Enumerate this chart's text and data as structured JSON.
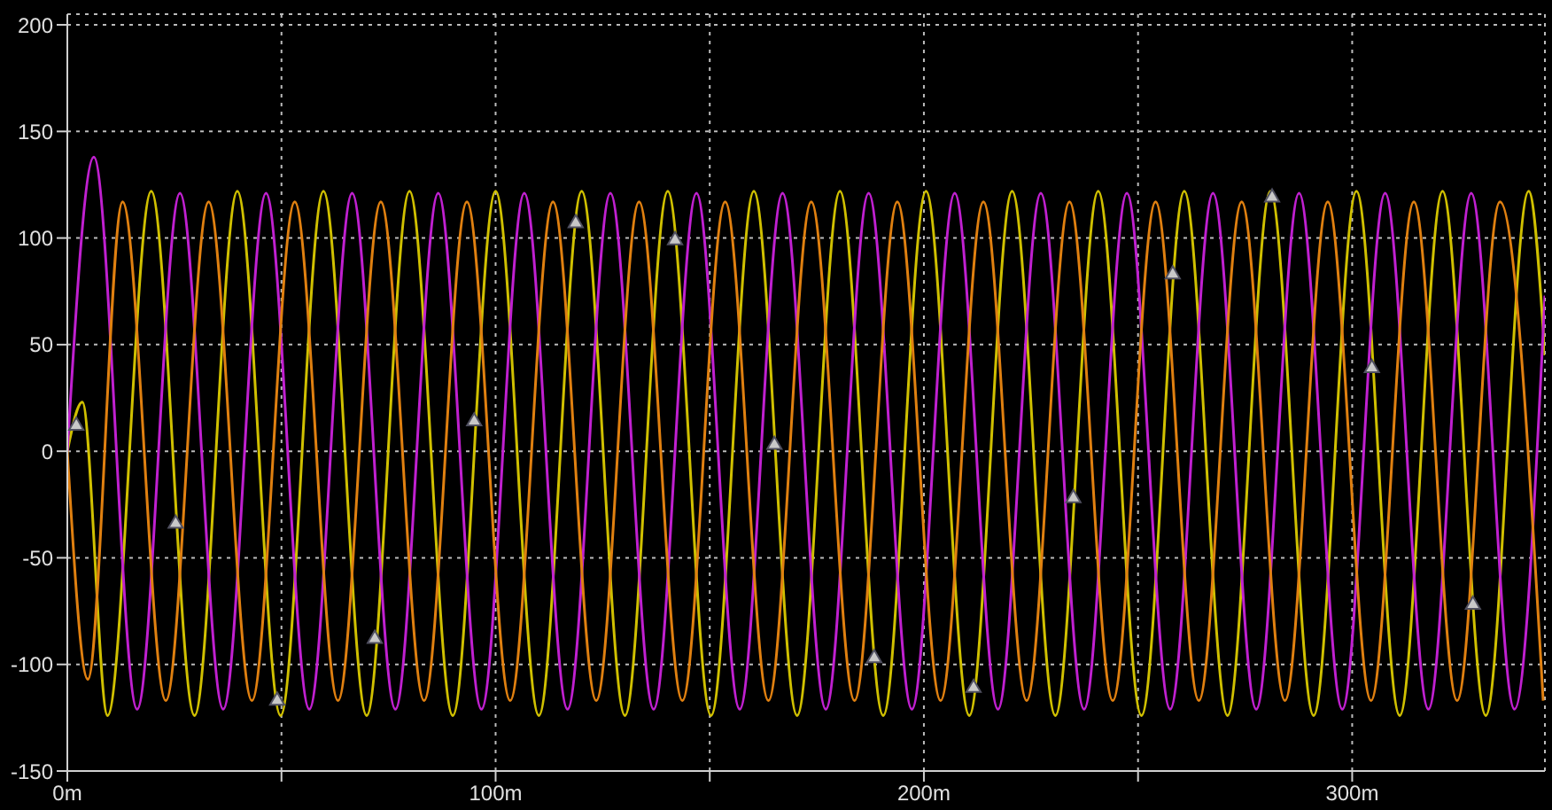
{
  "chart_data": {
    "type": "line",
    "xlim": [
      0,
      345
    ],
    "ylim": [
      -150,
      205
    ],
    "xticks": [
      {
        "value": 0,
        "label": "0m"
      },
      {
        "value": 50,
        "label": null
      },
      {
        "value": 100,
        "label": "100m"
      },
      {
        "value": 150,
        "label": null
      },
      {
        "value": 200,
        "label": "200m"
      },
      {
        "value": 250,
        "label": null
      },
      {
        "value": 300,
        "label": "300m"
      }
    ],
    "yticks": [
      -150,
      -100,
      -50,
      0,
      50,
      100,
      150,
      200
    ],
    "grid": true,
    "marker": "none",
    "line_style": "solid",
    "series": [
      {
        "color": "#d0c000",
        "x": [
          0,
          3.5,
          9.4,
          19.6,
          29.7,
          39.7,
          49.8,
          59.8,
          69.9,
          79.9,
          90.0,
          100.0,
          110.1,
          120.1,
          130.2,
          140.2,
          150.3,
          160.3,
          170.4,
          180.4,
          190.5,
          200.5,
          210.6,
          220.6,
          230.7,
          240.7,
          250.8,
          260.8,
          270.9,
          280.9,
          291.0,
          301.0,
          311.1,
          321.1,
          331.2,
          341.2,
          345
        ],
        "values": [
          0,
          23,
          -124,
          122,
          -124,
          122,
          -124,
          122,
          -124,
          122,
          -124,
          122,
          -124,
          122,
          -124,
          122,
          -124,
          122,
          -124,
          122,
          -124,
          122,
          -124,
          122,
          -124,
          122,
          -124,
          122,
          -124,
          122,
          -124,
          122,
          -124,
          122,
          -124,
          122,
          45
        ]
      },
      {
        "color": "#c020d0",
        "x": [
          0,
          6.2,
          16.3,
          26.3,
          36.4,
          46.4,
          56.5,
          66.5,
          76.6,
          86.6,
          96.7,
          106.7,
          116.8,
          126.8,
          136.9,
          146.9,
          157.0,
          167.0,
          177.1,
          187.1,
          197.2,
          207.2,
          217.3,
          227.3,
          237.4,
          247.4,
          257.5,
          267.5,
          277.6,
          287.6,
          297.7,
          307.7,
          317.8,
          327.8,
          337.9,
          345
        ],
        "values": [
          0,
          138,
          -121,
          121,
          -121,
          121,
          -121,
          121,
          -121,
          121,
          -121,
          121,
          -121,
          121,
          -121,
          121,
          -121,
          121,
          -121,
          121,
          -121,
          121,
          -121,
          121,
          -121,
          121,
          -121,
          121,
          -121,
          121,
          -121,
          121,
          -121,
          121,
          -121,
          73
        ]
      },
      {
        "color": "#e08010",
        "x": [
          0,
          4.8,
          12.9,
          23.0,
          33.0,
          43.1,
          53.1,
          63.2,
          73.2,
          83.3,
          93.3,
          103.4,
          113.4,
          123.5,
          133.5,
          143.6,
          153.6,
          163.7,
          173.7,
          183.8,
          193.8,
          203.9,
          213.9,
          224.0,
          234.0,
          244.1,
          254.1,
          264.2,
          274.2,
          284.3,
          294.3,
          304.4,
          314.4,
          324.5,
          334.5,
          344.6
        ],
        "values": [
          0,
          -107,
          117,
          -117,
          117,
          -117,
          117,
          -117,
          117,
          -117,
          117,
          -117,
          117,
          -117,
          117,
          -117,
          117,
          -117,
          117,
          -117,
          117,
          -117,
          117,
          -117,
          117,
          -117,
          117,
          -117,
          117,
          -117,
          117,
          -117,
          117,
          -117,
          117,
          -117
        ]
      },
      {
        "type": "scatter",
        "marker": "triangle",
        "color": "#c8c8c8",
        "x": [
          2.1,
          25.3,
          49,
          71.8,
          95,
          118.7,
          141.9,
          165.1,
          188.4,
          211.6,
          234.9,
          258.1,
          281.3,
          304.6,
          328.2
        ],
        "values": [
          12,
          -34,
          -117,
          -88,
          14,
          107,
          99,
          3,
          -97,
          -111,
          -22,
          83,
          119,
          39,
          -72
        ]
      }
    ]
  }
}
